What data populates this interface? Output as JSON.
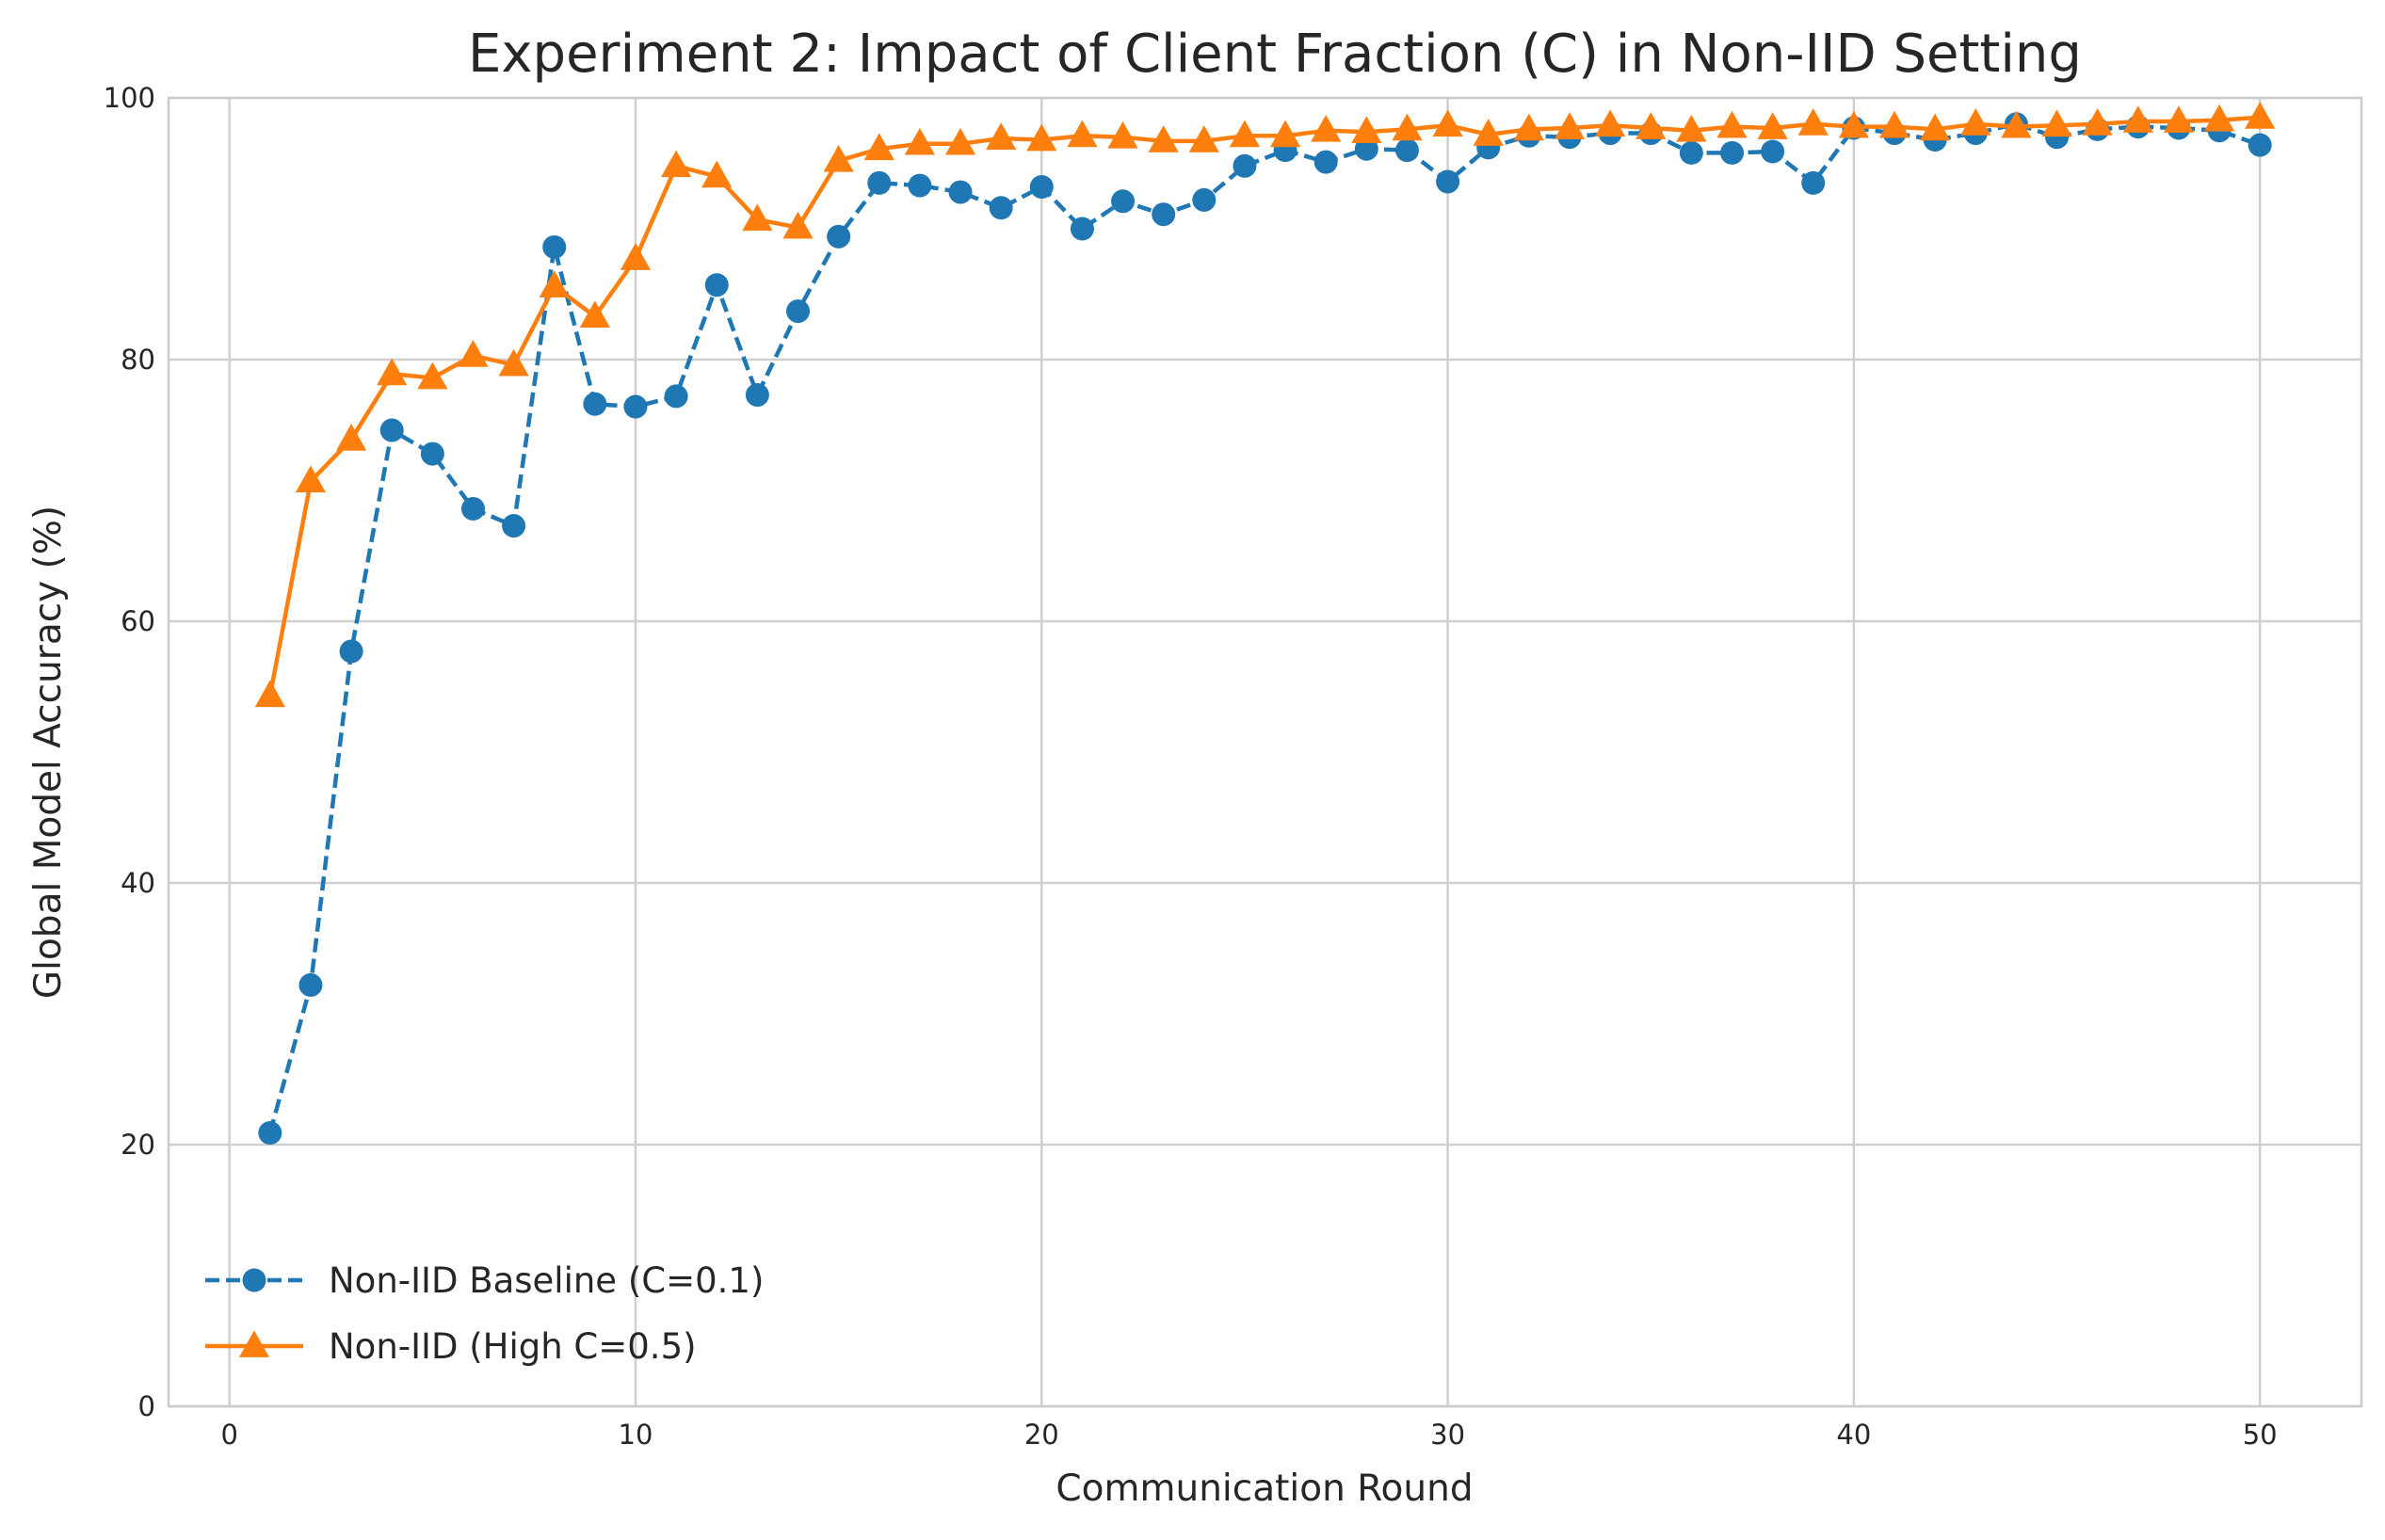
{
  "chart_data": {
    "type": "line",
    "title": "Experiment 2: Impact of Client Fraction (C) in Non-IID Setting",
    "xlabel": "Communication Round",
    "ylabel": "Global Model Accuracy (%)",
    "xlim": [
      -1.5,
      52.5
    ],
    "ylim": [
      0,
      100
    ],
    "xticks": [
      "0",
      "10",
      "20",
      "30",
      "40",
      "50"
    ],
    "yticks": [
      "0",
      "20",
      "40",
      "60",
      "80",
      "100"
    ],
    "grid": true,
    "legend": "lower-left",
    "x": [
      1,
      2,
      3,
      4,
      5,
      6,
      7,
      8,
      9,
      10,
      11,
      12,
      13,
      14,
      15,
      16,
      17,
      18,
      19,
      20,
      21,
      22,
      23,
      24,
      25,
      26,
      27,
      28,
      29,
      30,
      31,
      32,
      33,
      34,
      35,
      36,
      37,
      38,
      39,
      40,
      41,
      42,
      43,
      44,
      45,
      46,
      47,
      48,
      49,
      50
    ],
    "series": [
      {
        "name": "Non-IID Baseline (C=0.1)",
        "color": "#1f77b4",
        "line_style": "dashed",
        "marker": "circle",
        "values": [
          20.9,
          32.2,
          57.7,
          74.6,
          72.8,
          68.6,
          67.3,
          88.6,
          76.6,
          76.4,
          77.2,
          85.7,
          77.3,
          83.7,
          89.4,
          93.5,
          93.3,
          92.8,
          91.6,
          93.2,
          90.0,
          92.1,
          91.1,
          92.2,
          94.8,
          96.0,
          95.1,
          96.1,
          96.0,
          93.6,
          96.2,
          97.1,
          97.0,
          97.3,
          97.3,
          95.8,
          95.8,
          95.9,
          93.5,
          97.7,
          97.3,
          96.8,
          97.3,
          98.0,
          97.0,
          97.6,
          97.8,
          97.7,
          97.5,
          96.4
        ]
      },
      {
        "name": "Non-IID (High C=0.5)",
        "color": "#ff7f0e",
        "line_style": "solid",
        "marker": "triangle",
        "values": [
          54.3,
          70.7,
          73.9,
          78.9,
          78.6,
          80.3,
          79.6,
          85.6,
          83.3,
          87.7,
          94.8,
          94.0,
          90.7,
          90.1,
          95.2,
          96.1,
          96.5,
          96.5,
          96.9,
          96.8,
          97.1,
          97.0,
          96.7,
          96.7,
          97.1,
          97.1,
          97.5,
          97.4,
          97.6,
          97.9,
          97.2,
          97.6,
          97.7,
          97.9,
          97.7,
          97.5,
          97.8,
          97.7,
          98.0,
          97.8,
          97.8,
          97.6,
          98.0,
          97.8,
          97.9,
          98.0,
          98.2,
          98.2,
          98.3,
          98.5
        ]
      }
    ]
  }
}
